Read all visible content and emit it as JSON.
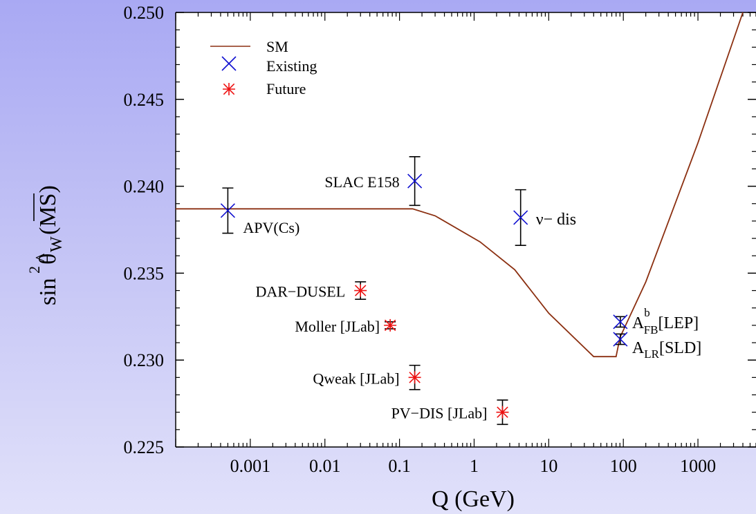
{
  "chart_data": {
    "type": "scatter",
    "title": "",
    "xlabel": "Q (GeV)",
    "ylabel": {
      "sin_sup": "2",
      "sin": "sin",
      "theta": "θ",
      "hat": "^",
      "sub": "W",
      "scheme": "(MS)"
    },
    "x_scale": "log",
    "xlim": [
      0.0001,
      6000
    ],
    "ylim": [
      0.225,
      0.25
    ],
    "x_ticks": [
      {
        "value": 0.001,
        "label": "0.001"
      },
      {
        "value": 0.01,
        "label": "0.01"
      },
      {
        "value": 0.1,
        "label": "0.1"
      },
      {
        "value": 1,
        "label": "1"
      },
      {
        "value": 10,
        "label": "10"
      },
      {
        "value": 100,
        "label": "100"
      },
      {
        "value": 1000,
        "label": "1000"
      }
    ],
    "y_ticks": [
      {
        "value": 0.225,
        "label": "0.225"
      },
      {
        "value": 0.23,
        "label": "0.230"
      },
      {
        "value": 0.235,
        "label": "0.235"
      },
      {
        "value": 0.24,
        "label": "0.240"
      },
      {
        "value": 0.245,
        "label": "0.245"
      },
      {
        "value": 0.25,
        "label": "0.250"
      }
    ],
    "legend": {
      "position": "top-left",
      "entries": [
        {
          "name": "SM",
          "marker": "line",
          "color": "#8b2f10"
        },
        {
          "name": "Existing",
          "marker": "x",
          "color": "#1010d0"
        },
        {
          "name": "Future",
          "marker": "asterisk",
          "color": "#ee1010"
        }
      ]
    },
    "sm_curve": {
      "name": "SM",
      "color": "#8b2f10",
      "x": [
        0.0001,
        0.001,
        0.01,
        0.1,
        0.15,
        0.3,
        1.2,
        3.5,
        10,
        40,
        80,
        90,
        200,
        1000,
        4000
      ],
      "y": [
        0.2387,
        0.2387,
        0.2387,
        0.2387,
        0.2387,
        0.2383,
        0.2368,
        0.2352,
        0.2327,
        0.2302,
        0.2302,
        0.2313,
        0.2345,
        0.2425,
        0.25
      ]
    },
    "series": [
      {
        "name": "Existing",
        "marker": "x",
        "color": "#1010d0",
        "points": [
          {
            "label": "APV(Cs)",
            "x": 0.0005,
            "y": 0.2386,
            "err": 0.0013
          },
          {
            "label": "SLAC E158",
            "x": 0.16,
            "y": 0.2403,
            "err": 0.0014
          },
          {
            "label": "ν− dis",
            "x": 4.2,
            "y": 0.2382,
            "err": 0.0016
          },
          {
            "label": "A_FB^b[LEP]",
            "label_main": "A",
            "label_sup": "b",
            "label_sub": "FB",
            "label_tail": "[LEP]",
            "x": 91.19,
            "y": 0.2322,
            "err": 0.0003
          },
          {
            "label": "A_LR[SLD]",
            "label_main": "A",
            "label_sup": "",
            "label_sub": "LR",
            "label_tail": "[SLD]",
            "x": 91.19,
            "y": 0.2312,
            "err": 0.0003
          }
        ]
      },
      {
        "name": "Future",
        "marker": "asterisk",
        "color": "#ee1010",
        "points": [
          {
            "label": "DAR−DUSEL",
            "x": 0.03,
            "y": 0.234,
            "err": 0.0005
          },
          {
            "label": "Moller [JLab]",
            "x": 0.075,
            "y": 0.232,
            "err": 0.0002
          },
          {
            "label": "Qweak [JLab]",
            "x": 0.16,
            "y": 0.229,
            "err": 0.0007
          },
          {
            "label": "PV−DIS [JLab]",
            "x": 2.4,
            "y": 0.227,
            "err": 0.0007
          }
        ]
      }
    ]
  }
}
